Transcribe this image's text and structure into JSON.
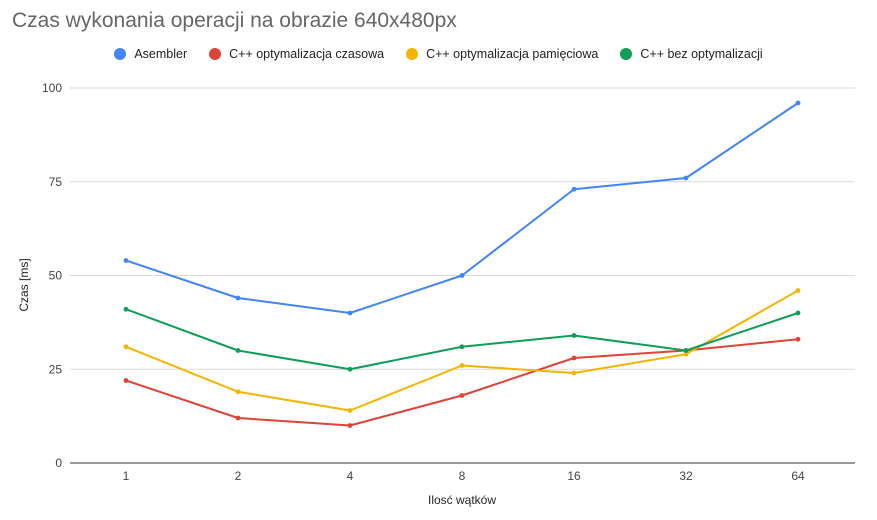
{
  "chart_data": {
    "type": "line",
    "title": "Czas wykonania operacji na obrazie 640x480px",
    "xlabel": "Ilosć wątków",
    "ylabel": "Czas [ms]",
    "categories": [
      "1",
      "2",
      "4",
      "8",
      "16",
      "32",
      "64"
    ],
    "yticks": [
      "0",
      "25",
      "50",
      "75",
      "100"
    ],
    "ylim": [
      0,
      100
    ],
    "grid": true,
    "legend_position": "top",
    "series": [
      {
        "name": "Asembler",
        "color": "#4285f4",
        "values": [
          54,
          44,
          40,
          50,
          73,
          76,
          96
        ]
      },
      {
        "name": "C++ optymalizacja czasowa",
        "color": "#db4437",
        "values": [
          22,
          12,
          10,
          18,
          28,
          30,
          33
        ]
      },
      {
        "name": "C++ optymalizacja pamięciowa",
        "color": "#f4b400",
        "values": [
          31,
          19,
          14,
          26,
          24,
          29,
          46
        ]
      },
      {
        "name": "C++ bez optymalizacji",
        "color": "#0f9d58",
        "values": [
          41,
          30,
          25,
          31,
          34,
          30,
          40
        ]
      }
    ]
  }
}
